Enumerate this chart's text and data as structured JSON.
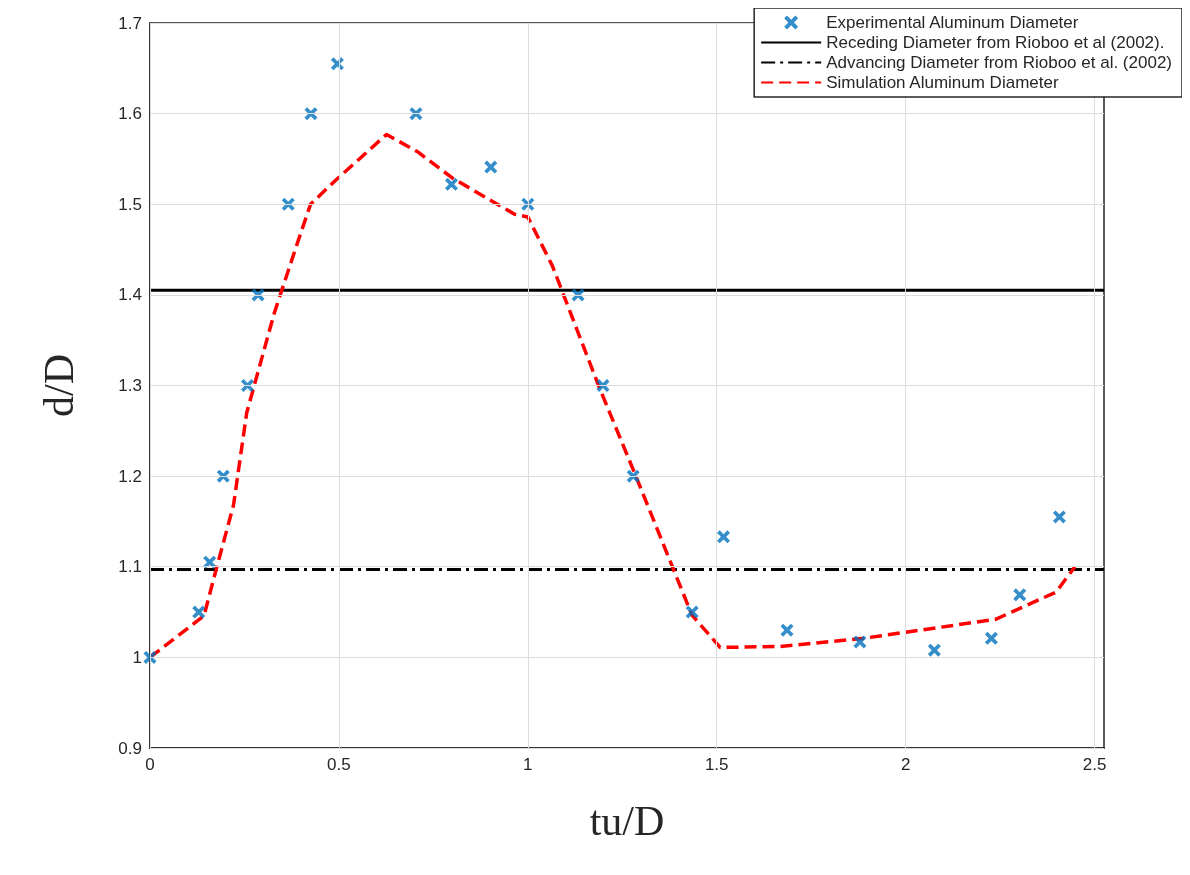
{
  "chart_data": {
    "type": "scatter",
    "xlabel": "tu/D",
    "ylabel": "d/D",
    "xlim": [
      0,
      2.525
    ],
    "xticks": [
      0,
      0.5,
      1,
      1.5,
      2,
      2.5
    ],
    "ylim": [
      0.9,
      1.7
    ],
    "yticks": [
      0.9,
      1,
      1.1,
      1.2,
      1.3,
      1.4,
      1.5,
      1.6,
      1.7
    ],
    "grid": true,
    "legend": "top right",
    "series": [
      {
        "name": "Experimental Aluminum Diameter",
        "color": "#0072bd",
        "marker": "cross",
        "x": [
          0,
          0.129,
          0.158,
          0.194,
          0.258,
          0.286,
          0.366,
          0.426,
          0.496,
          0.704,
          0.798,
          0.902,
          1.0,
          1.133,
          1.199,
          1.279,
          1.435,
          1.518,
          1.686,
          1.879,
          2.076,
          2.227,
          2.302,
          2.407
        ],
        "values": [
          1.0,
          1.05,
          1.105,
          1.2,
          1.3,
          1.4,
          1.5,
          1.6,
          1.655,
          1.6,
          1.522,
          1.541,
          1.5,
          1.4,
          1.3,
          1.2,
          1.05,
          1.133,
          1.03,
          1.017,
          1.008,
          1.021,
          1.069,
          1.155
        ]
      },
      {
        "name": "Simulation Aluminum Diameter",
        "type": "line",
        "color": "#ff0000",
        "line_style": "dashed",
        "marker": "none",
        "x": [
          0,
          0.143,
          0.177,
          0.221,
          0.256,
          0.329,
          0.39,
          0.425,
          0.49,
          0.626,
          0.708,
          0.8,
          0.965,
          1.0,
          1.065,
          1.189,
          1.284,
          1.434,
          1.509,
          1.668,
          1.888,
          2.238,
          2.398,
          2.448
        ],
        "values": [
          1.0,
          1.046,
          1.1,
          1.168,
          1.27,
          1.38,
          1.457,
          1.5,
          1.526,
          1.577,
          1.558,
          1.529,
          1.489,
          1.486,
          1.432,
          1.298,
          1.202,
          1.047,
          1.011,
          1.012,
          1.021,
          1.042,
          1.072,
          1.1
        ]
      }
    ],
    "ref_lines": [
      {
        "axis": "y",
        "value": 1.405,
        "label": "Receding Diameter from Rioboo et al (2002).",
        "color": "#000000",
        "line_style": "solid"
      },
      {
        "axis": "y",
        "value": 1.097,
        "label": "Advancing Diameter from Rioboo et al. (2002)",
        "color": "#000000",
        "line_style": "dashed"
      }
    ]
  }
}
